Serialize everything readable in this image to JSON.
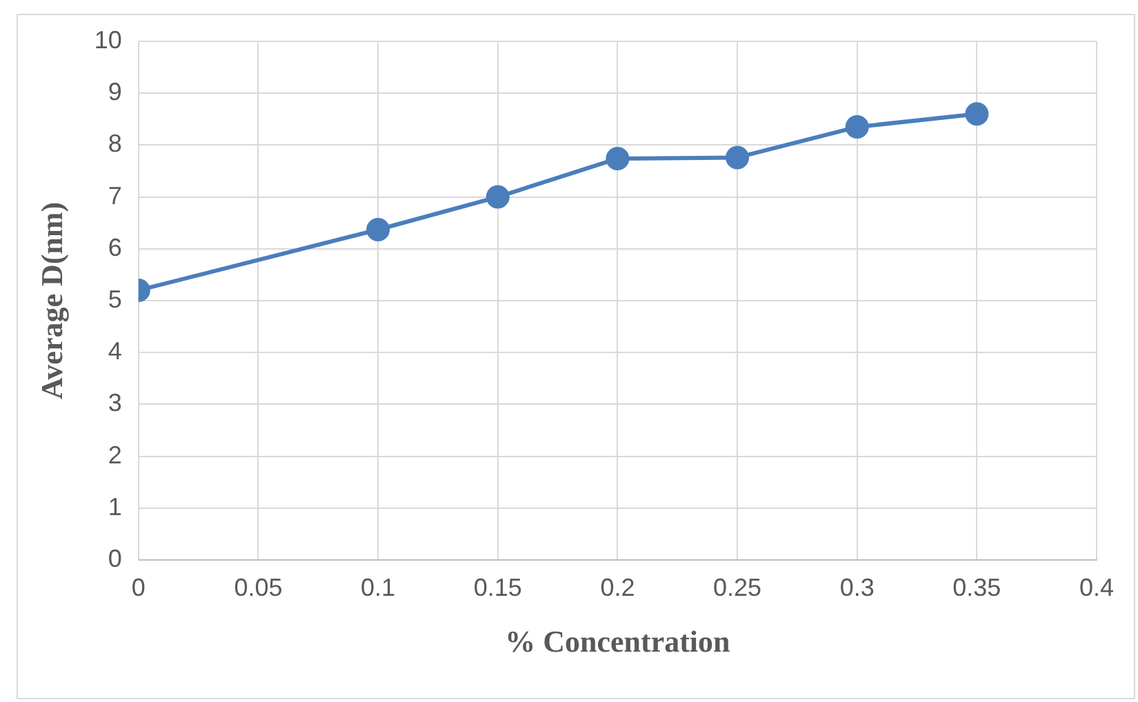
{
  "chart_data": {
    "type": "line",
    "xlabel": "% Concentration",
    "ylabel": "Average D(nm)",
    "x": [
      0,
      0.1,
      0.15,
      0.2,
      0.25,
      0.3,
      0.35
    ],
    "series": [
      {
        "color": "#4a7ebb",
        "values": [
          5.2,
          6.37,
          7.0,
          7.74,
          7.76,
          8.35,
          8.6
        ]
      }
    ],
    "xlim": [
      0,
      0.4
    ],
    "xticks": [
      0,
      0.05,
      0.1,
      0.15,
      0.2,
      0.25,
      0.3,
      0.35,
      0.4
    ],
    "ylim": [
      0,
      10
    ],
    "yticks": [
      0,
      1,
      2,
      3,
      4,
      5,
      6,
      7,
      8,
      9,
      10
    ],
    "grid": true,
    "legend": false,
    "marker": "circle",
    "line_style": "solid"
  }
}
